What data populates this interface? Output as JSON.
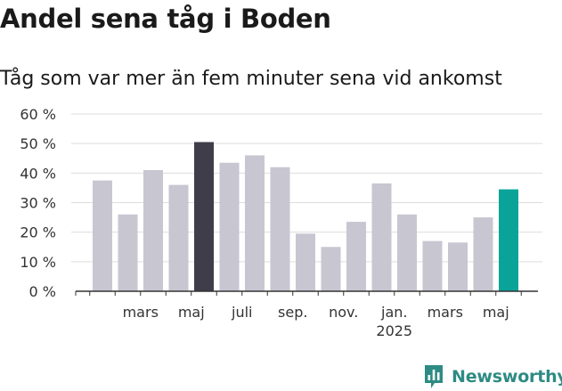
{
  "title": "Andel sena tåg i Boden",
  "subtitle": "Tåg som var mer än fem minuter sena vid ankomst",
  "brand": {
    "name": "Newsworthy",
    "icon": "newsworthy-logo-icon",
    "color": "#2e8b84"
  },
  "colors": {
    "bar": "#c8c6d1",
    "highlight": "#3f3d4a",
    "latest": "#0aa39a",
    "grid": "#dddddd",
    "axis": "#333333"
  },
  "chart_data": {
    "type": "bar",
    "title": "Andel sena tåg i Boden",
    "subtitle": "Tåg som var mer än fem minuter sena vid ankomst",
    "xlabel": "",
    "ylabel": "",
    "ylim": [
      0,
      60
    ],
    "yticks": [
      0,
      10,
      20,
      30,
      40,
      50,
      60
    ],
    "yticklabels": [
      "0 %",
      "10 %",
      "20 %",
      "30 %",
      "40 %",
      "50 %",
      "60 %"
    ],
    "categories": [
      "2024-02",
      "2024-03",
      "2024-04",
      "2024-05",
      "2024-06",
      "2024-07",
      "2024-08",
      "2024-09",
      "2024-10",
      "2024-11",
      "2024-12",
      "2025-01",
      "2025-02",
      "2025-03",
      "2025-04",
      "2025-05",
      "2025-06"
    ],
    "values": [
      37.5,
      26,
      41,
      36,
      50.5,
      43.5,
      46,
      42,
      19.5,
      15,
      23.5,
      36.5,
      26,
      17,
      16.5,
      25,
      34.5
    ],
    "bar_roles": [
      "normal",
      "normal",
      "normal",
      "normal",
      "highlight",
      "normal",
      "normal",
      "normal",
      "normal",
      "normal",
      "normal",
      "normal",
      "normal",
      "normal",
      "normal",
      "normal",
      "latest"
    ],
    "xtick_labels": [
      {
        "at": 1,
        "label": "mars"
      },
      {
        "at": 3,
        "label": "maj"
      },
      {
        "at": 5,
        "label": "juli"
      },
      {
        "at": 7,
        "label": "sep."
      },
      {
        "at": 9,
        "label": "nov."
      },
      {
        "at": 11,
        "label": "jan.",
        "sublabel": "2025"
      },
      {
        "at": 13,
        "label": "mars"
      },
      {
        "at": 15,
        "label": "maj"
      }
    ],
    "grid": true,
    "legend": "none"
  }
}
